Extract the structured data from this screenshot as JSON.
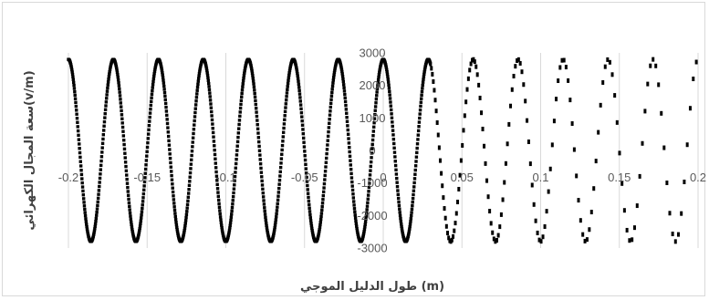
{
  "chart_data": {
    "type": "scatter",
    "title": "",
    "xlabel": "طول الدليل الموجي (m)",
    "ylabel": "سعة المجال الكهرائي(v/m)",
    "xlim": [
      -0.2,
      0.2
    ],
    "ylim": [
      -3000,
      3000
    ],
    "x_ticks": [
      -0.2,
      -0.15,
      -0.1,
      -0.05,
      0,
      0.05,
      0.1,
      0.15,
      0.2
    ],
    "x_tick_labels": [
      "-0.2",
      "-0.15",
      "-0.1",
      "-0.05",
      "0",
      "0.05",
      "0.1",
      "0.15",
      "0.2"
    ],
    "y_ticks": [
      -3000,
      -2000,
      -1000,
      0,
      1000,
      2000,
      3000
    ],
    "y_tick_labels": [
      "-3000",
      "-2000",
      "-1000",
      "0",
      "1000",
      "2000",
      "3000"
    ],
    "grid": {
      "vertical": true,
      "horizontal": false
    },
    "legend": "none",
    "marker_color": "#000000",
    "series": [
      {
        "amplitude": 2800,
        "cycles_per_meter": 35,
        "peak_at_x": -0.2,
        "x_range": [
          -0.2,
          0.2
        ]
      }
    ]
  }
}
